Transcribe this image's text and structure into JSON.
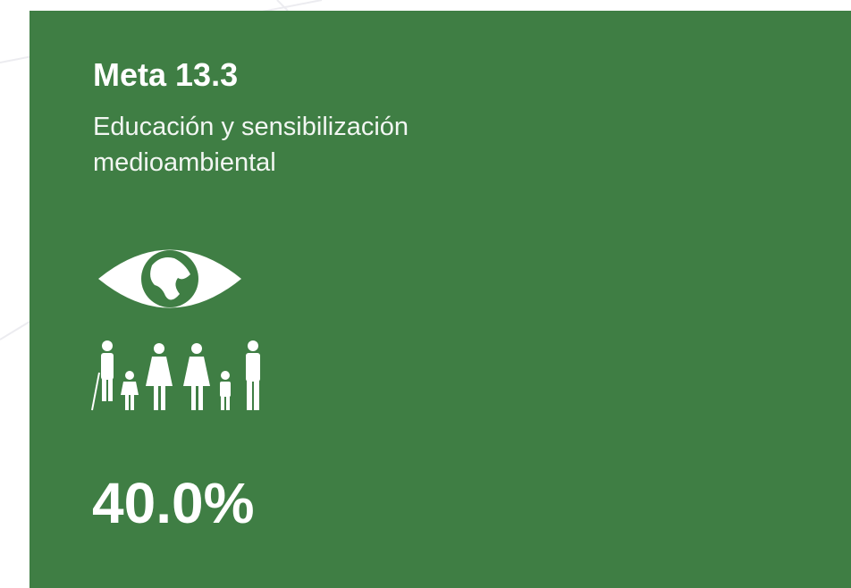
{
  "card": {
    "title": "Meta 13.3",
    "subtitle": "Educación y sensibilización medioambiental",
    "value": "40.0%"
  }
}
